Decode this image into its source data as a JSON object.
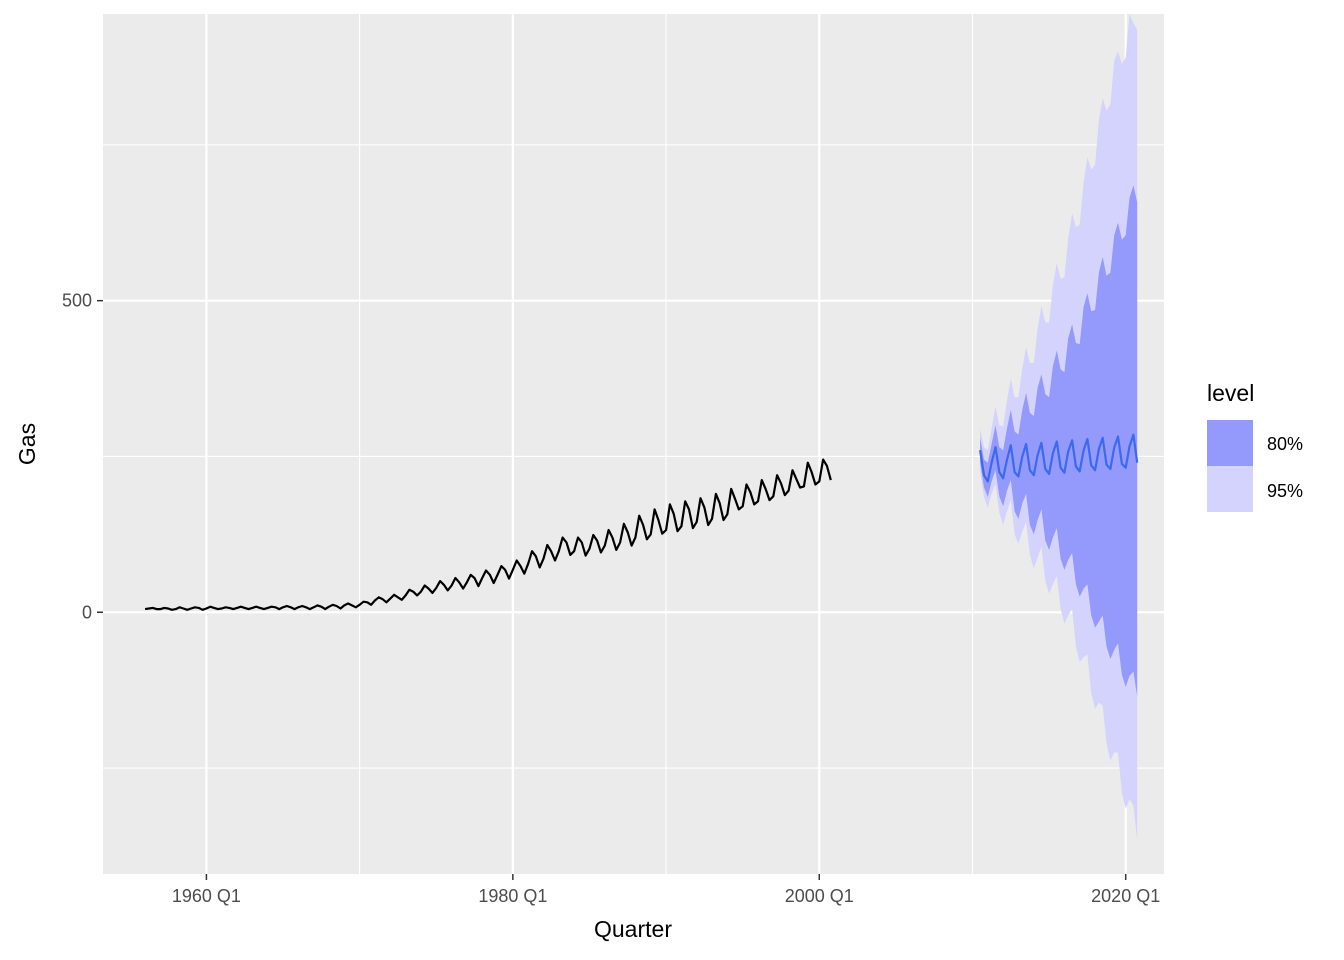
{
  "chart_data": {
    "type": "line",
    "xlabel": "Quarter",
    "ylabel": "Gas",
    "x_tick_labels": [
      "1960 Q1",
      "1980 Q1",
      "2000 Q1",
      "2020 Q1"
    ],
    "x_tick_years": [
      1960,
      1980,
      2000,
      2020
    ],
    "y_tick_labels": [
      "0",
      "500"
    ],
    "y_tick_values": [
      0,
      500
    ],
    "xlim": [
      1953.25,
      2022.5
    ],
    "ylim": [
      -420,
      960
    ],
    "grid": true,
    "legend": {
      "title": "level",
      "position": "right",
      "entries": [
        {
          "label": "80%",
          "color": "#9499fc"
        },
        {
          "label": "95%",
          "color": "#d3d3fd"
        }
      ]
    },
    "colors": {
      "panel": "#ebebeb",
      "grid": "#ffffff",
      "history": "#000000",
      "forecast": "#3b69f0",
      "band80": "#9499fc",
      "band95": "#d3d3fd"
    },
    "series": [
      {
        "name": "history",
        "start_year": 1956.0,
        "step": 0.25,
        "values": [
          5,
          6,
          7,
          5,
          5,
          7,
          6,
          4,
          5,
          8,
          6,
          4,
          6,
          8,
          7,
          4,
          6,
          9,
          7,
          5,
          6,
          8,
          7,
          5,
          7,
          9,
          7,
          5,
          7,
          9,
          7,
          5,
          7,
          9,
          8,
          5,
          8,
          10,
          8,
          5,
          8,
          10,
          8,
          5,
          8,
          11,
          9,
          5,
          9,
          12,
          10,
          6,
          11,
          14,
          11,
          8,
          12,
          17,
          16,
          12,
          19,
          24,
          21,
          16,
          22,
          28,
          24,
          20,
          27,
          36,
          33,
          27,
          33,
          43,
          38,
          31,
          39,
          50,
          44,
          35,
          43,
          55,
          48,
          38,
          48,
          60,
          55,
          42,
          55,
          67,
          60,
          47,
          60,
          74,
          68,
          54,
          68,
          83,
          74,
          62,
          78,
          98,
          90,
          72,
          86,
          108,
          98,
          83,
          98,
          120,
          112,
          92,
          98,
          120,
          112,
          91,
          102,
          124,
          115,
          96,
          107,
          132,
          120,
          100,
          112,
          142,
          128,
          107,
          120,
          155,
          140,
          117,
          125,
          165,
          148,
          126,
          132,
          173,
          158,
          130,
          138,
          178,
          165,
          135,
          145,
          183,
          168,
          140,
          150,
          190,
          175,
          148,
          157,
          198,
          182,
          165,
          170,
          205,
          193,
          173,
          178,
          212,
          198,
          180,
          186,
          220,
          207,
          188,
          195,
          228,
          214,
          200,
          202,
          240,
          225,
          205,
          210,
          245,
          235,
          212
        ],
        "color": "#000000"
      },
      {
        "name": "forecast",
        "start_year": 2010.5,
        "step": 0.25,
        "values": [
          260,
          220,
          210,
          240,
          265,
          225,
          215,
          245,
          268,
          225,
          218,
          250,
          270,
          228,
          220,
          252,
          272,
          230,
          222,
          255,
          274,
          232,
          224,
          258,
          276,
          234,
          226,
          260,
          278,
          236,
          228,
          262,
          280,
          237,
          230,
          264,
          282,
          238,
          232,
          266,
          285,
          240
        ],
        "color": "#3b69f0"
      }
    ],
    "intervals": {
      "start_year": 2010.5,
      "step": 0.25,
      "lower80": [
        240,
        200,
        185,
        210,
        228,
        186,
        170,
        195,
        212,
        162,
        150,
        175,
        190,
        140,
        125,
        148,
        165,
        115,
        100,
        120,
        135,
        86,
        68,
        84,
        95,
        45,
        25,
        38,
        45,
        -5,
        -25,
        -15,
        -5,
        -55,
        -75,
        -60,
        -50,
        -100,
        -120,
        -102,
        -95,
        -135
      ],
      "upper80": [
        280,
        245,
        240,
        270,
        300,
        265,
        260,
        295,
        325,
        290,
        285,
        325,
        352,
        320,
        315,
        360,
        382,
        350,
        345,
        395,
        420,
        390,
        385,
        440,
        462,
        432,
        430,
        490,
        512,
        483,
        485,
        545,
        570,
        540,
        545,
        605,
        625,
        598,
        605,
        665,
        685,
        658
      ],
      "lower95": [
        225,
        185,
        168,
        190,
        206,
        160,
        140,
        162,
        180,
        125,
        110,
        130,
        145,
        92,
        70,
        88,
        105,
        50,
        30,
        45,
        58,
        5,
        -18,
        -5,
        5,
        -55,
        -80,
        -72,
        -68,
        -130,
        -155,
        -145,
        -150,
        -210,
        -238,
        -225,
        -225,
        -290,
        -315,
        -300,
        -310,
        -365
      ],
      "upper95": [
        295,
        265,
        260,
        295,
        330,
        300,
        298,
        340,
        375,
        345,
        345,
        392,
        425,
        400,
        400,
        455,
        492,
        465,
        465,
        525,
        560,
        535,
        538,
        600,
        640,
        618,
        622,
        690,
        730,
        710,
        718,
        790,
        825,
        805,
        815,
        885,
        900,
        880,
        890,
        960,
        945,
        935
      ]
    }
  }
}
